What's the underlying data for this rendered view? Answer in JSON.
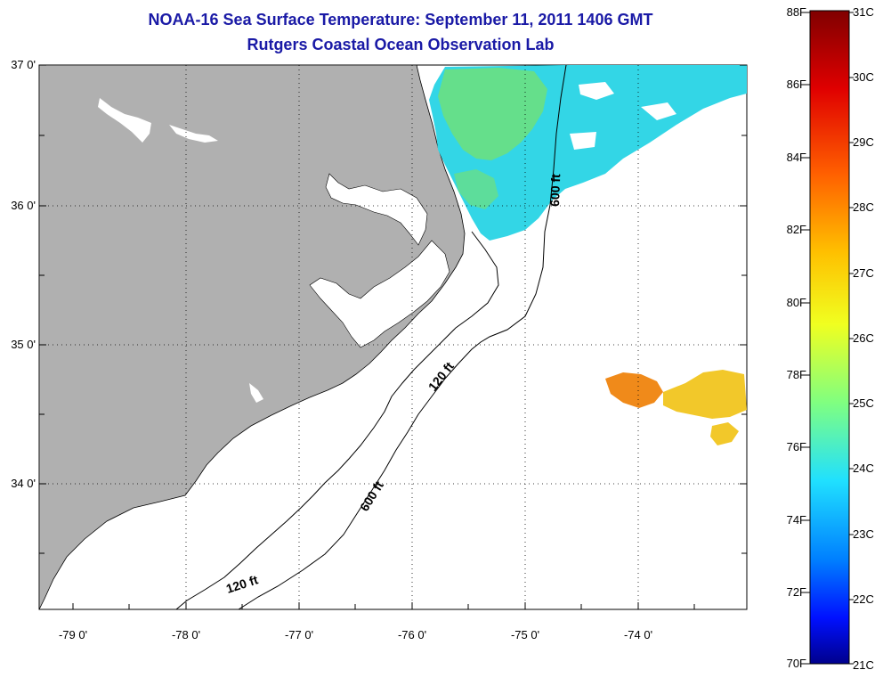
{
  "title": "NOAA-16 Sea Surface Temperature:  September 11, 2011 1406 GMT",
  "subtitle": "Rutgers Coastal Ocean Observation Lab",
  "map": {
    "lat_ticks": [
      "37 0'",
      "36 0'",
      "35 0'",
      "34 0'"
    ],
    "lon_ticks": [
      "-79 0'",
      "-78 0'",
      "-77 0'",
      "-76 0'",
      "-75 0'",
      "-74 0'"
    ],
    "contours": [
      "600 ft",
      "120 ft",
      "600 ft",
      "120 ft"
    ],
    "colors": {
      "land": "#b0b0b0",
      "cool_water": "#33d6e6",
      "green_water": "#6fe07a",
      "warm_orange": "#f08a1a",
      "warm_yellow": "#f2c82a"
    }
  },
  "colorbar": {
    "fahrenheit": [
      "88F",
      "86F",
      "84F",
      "82F",
      "80F",
      "78F",
      "76F",
      "74F",
      "72F",
      "70F"
    ],
    "celsius": [
      "31C",
      "30C",
      "29C",
      "28C",
      "27C",
      "26C",
      "25C",
      "24C",
      "23C",
      "22C",
      "21C"
    ]
  }
}
